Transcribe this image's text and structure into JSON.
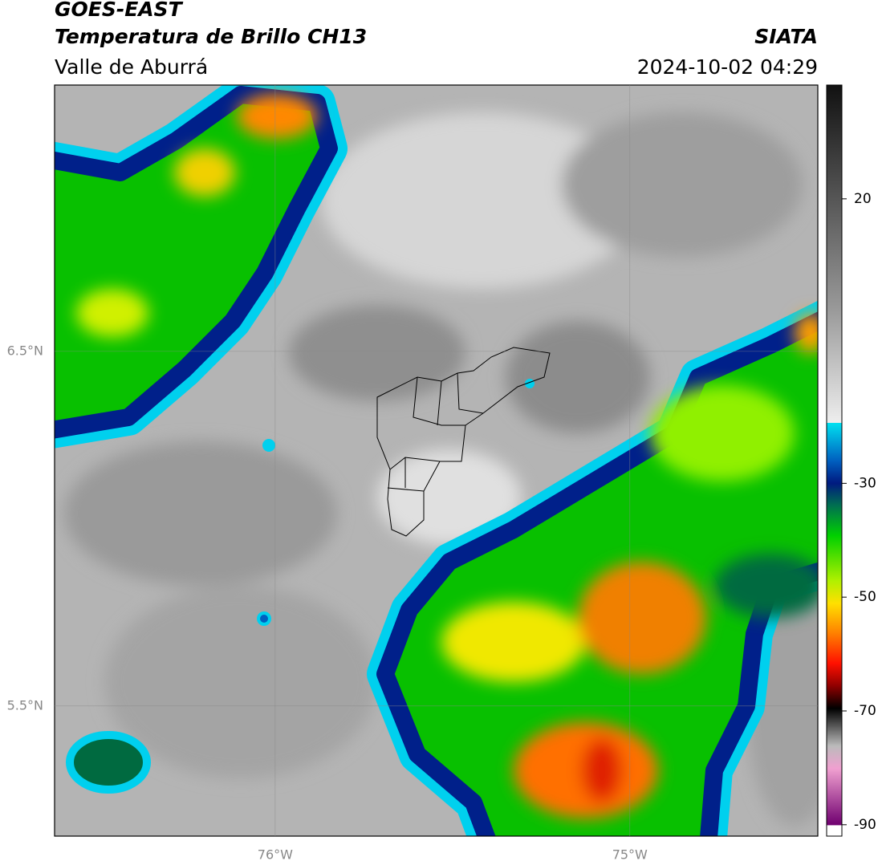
{
  "header": {
    "title": "GOES-EAST",
    "subtitle": "Temperatura de Brillo CH13",
    "region": "Valle de Aburrá",
    "source": "SIATA",
    "timestamp": "2024-10-02 04:29"
  },
  "map": {
    "xlim": [
      -76.622,
      -74.47
    ],
    "ylim": [
      5.133,
      7.251
    ],
    "xticks": [
      {
        "value": -76,
        "label": "76°W"
      },
      {
        "value": -75,
        "label": "75°W"
      }
    ],
    "yticks": [
      {
        "value": 6.5,
        "label": "6.5°N"
      },
      {
        "value": 5.5,
        "label": "5.5°N"
      }
    ],
    "grid": true
  },
  "colorbar": {
    "clim": [
      -92,
      40
    ],
    "ticks": [
      20,
      -30,
      -50,
      -70,
      -90
    ]
  }
}
